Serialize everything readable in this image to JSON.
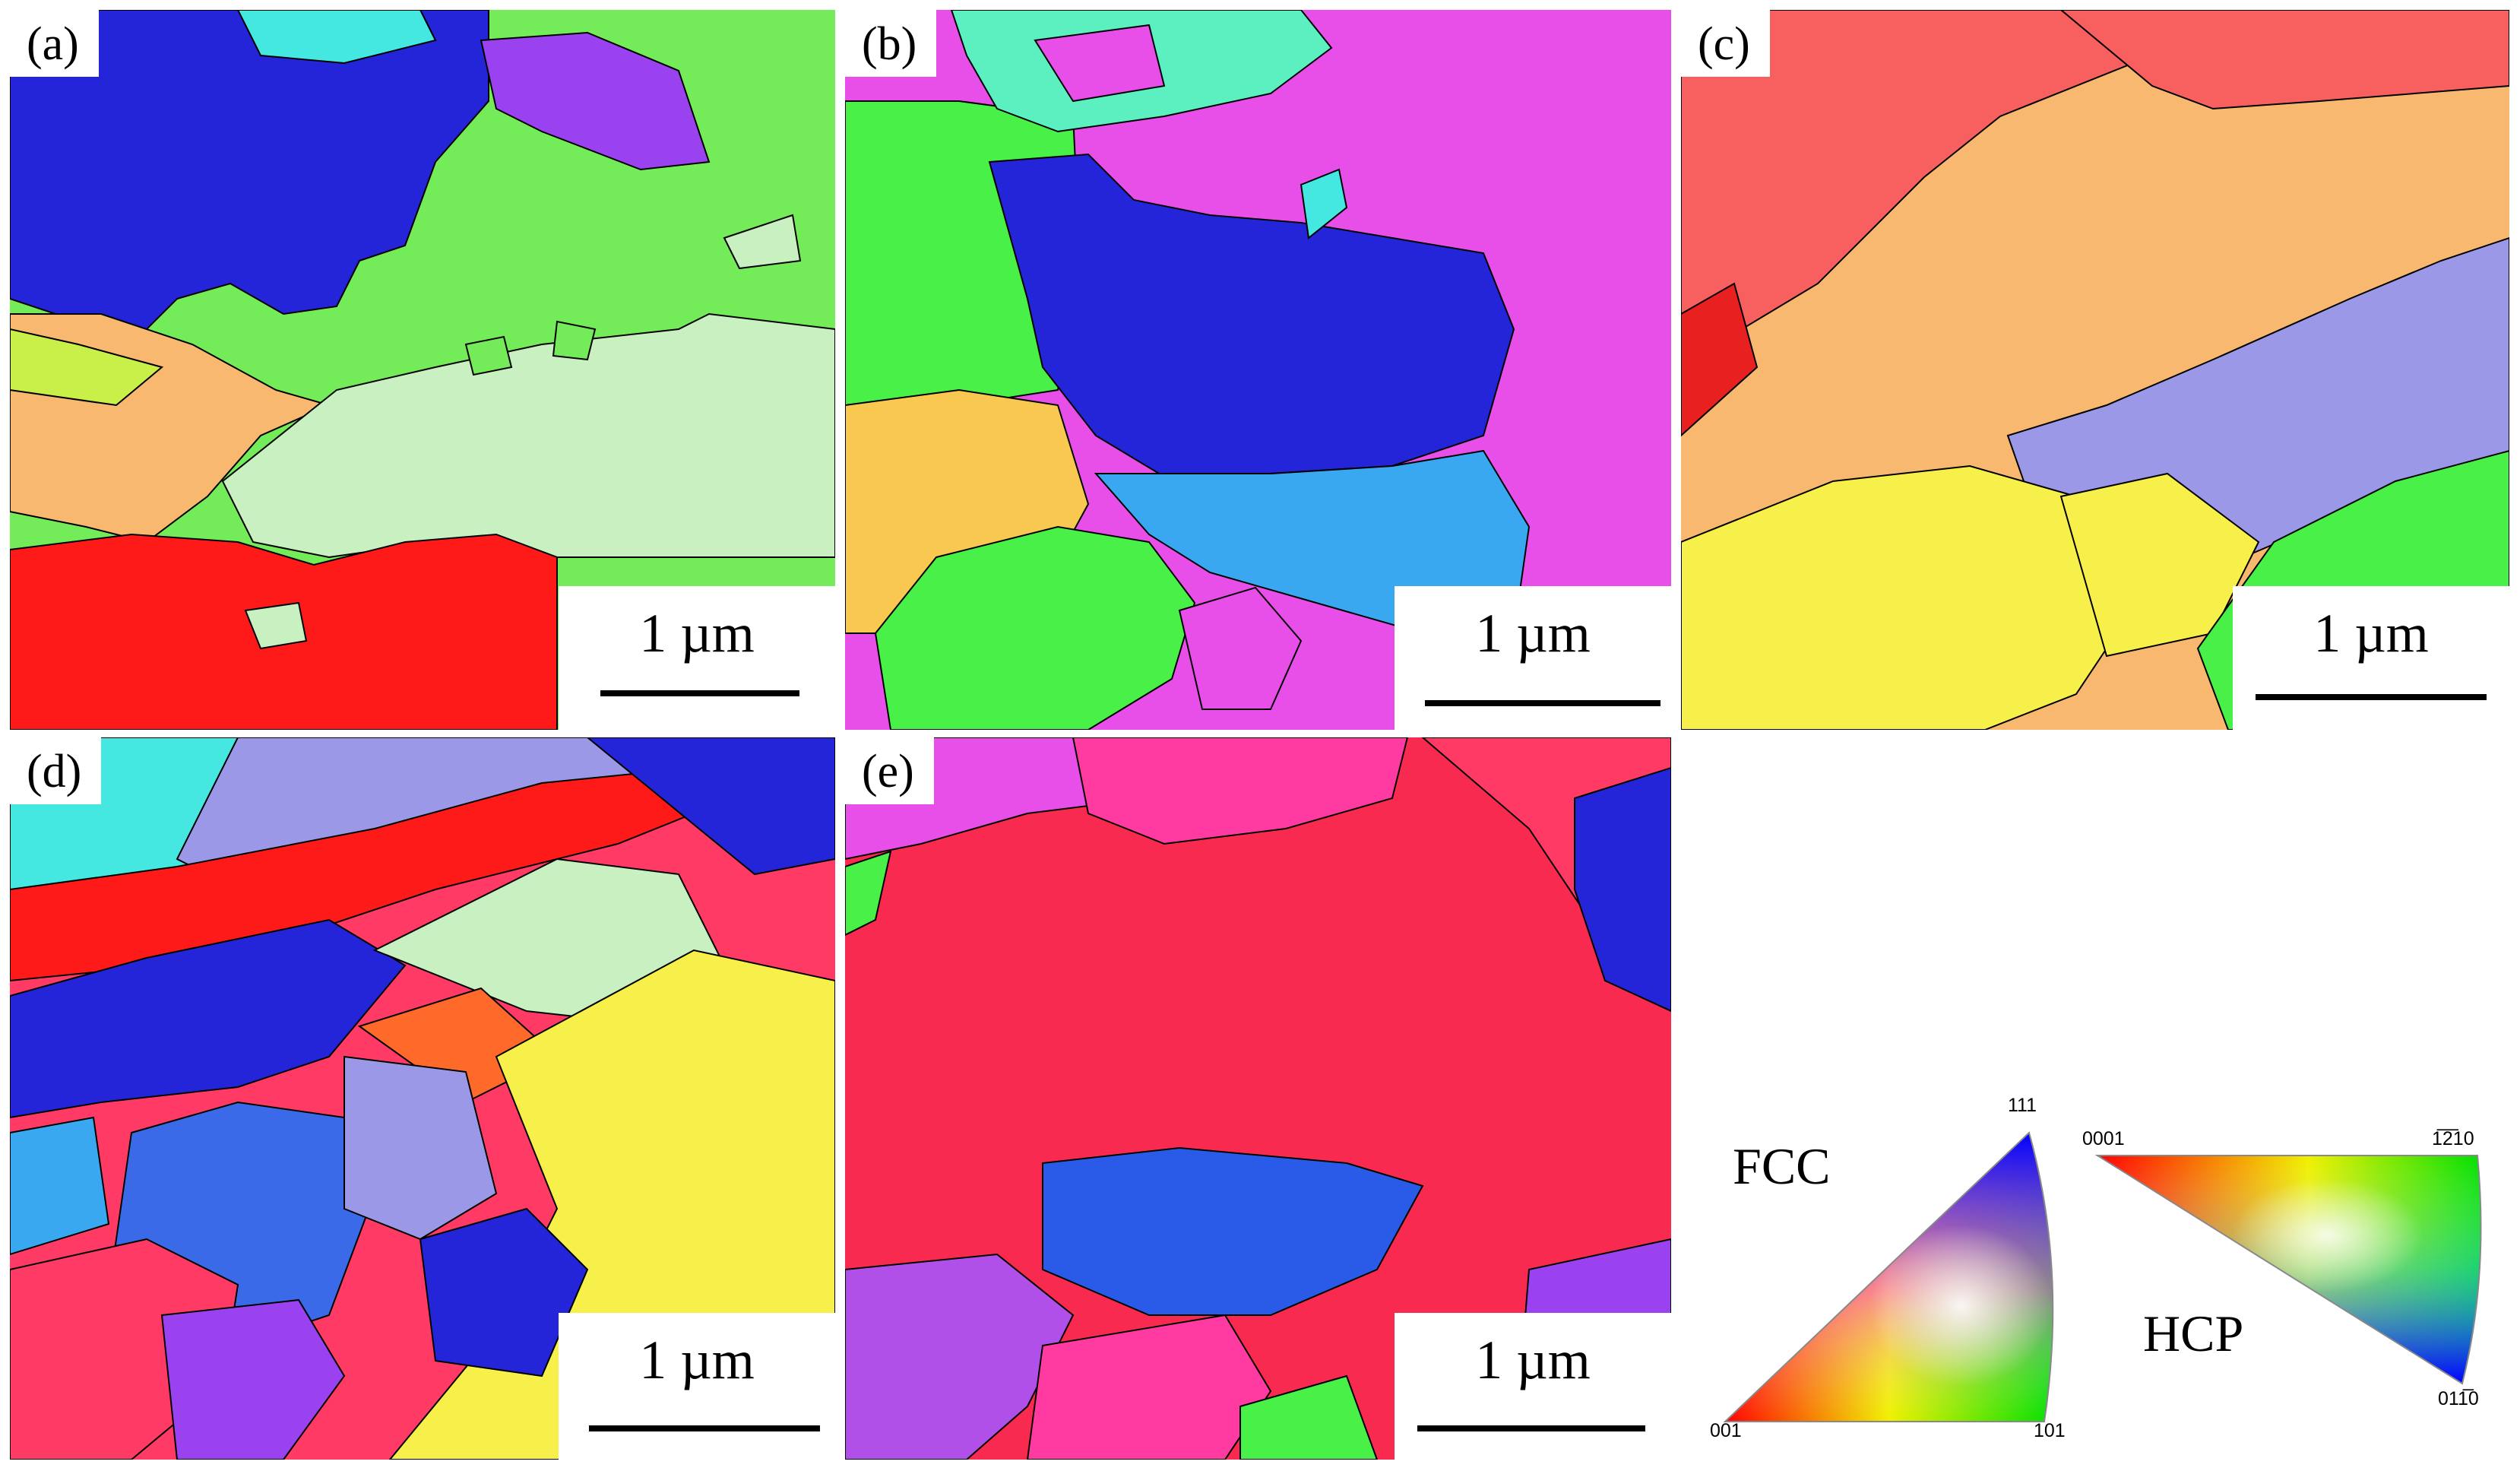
{
  "panels": [
    {
      "label": "(a)",
      "scale": "1 µm"
    },
    {
      "label": "(b)",
      "scale": "1 µm"
    },
    {
      "label": "(c)",
      "scale": "1 µm"
    },
    {
      "label": "(d)",
      "scale": "1 µm"
    },
    {
      "label": "(e)",
      "scale": "1 µm"
    }
  ],
  "legend": {
    "fcc": {
      "name": "FCC",
      "top": "111",
      "left": "001",
      "right": "101"
    },
    "hcp": {
      "name": "HCP",
      "left": "0001",
      "right": "1̅2̅10",
      "bottom": "011̅0"
    }
  },
  "colors": {
    "red": "#ff1a1a",
    "green": "#48f048",
    "blue": "#2424d8",
    "pink": "#ff3a64",
    "magenta": "#e84ee8",
    "orange": "#f8b870",
    "yellow": "#f8f04a",
    "cyan": "#44e8e0",
    "lavender": "#9c98e8",
    "purple": "#9a42f0",
    "skyblue": "#3aa8f0",
    "mint": "#c8f0c0"
  }
}
